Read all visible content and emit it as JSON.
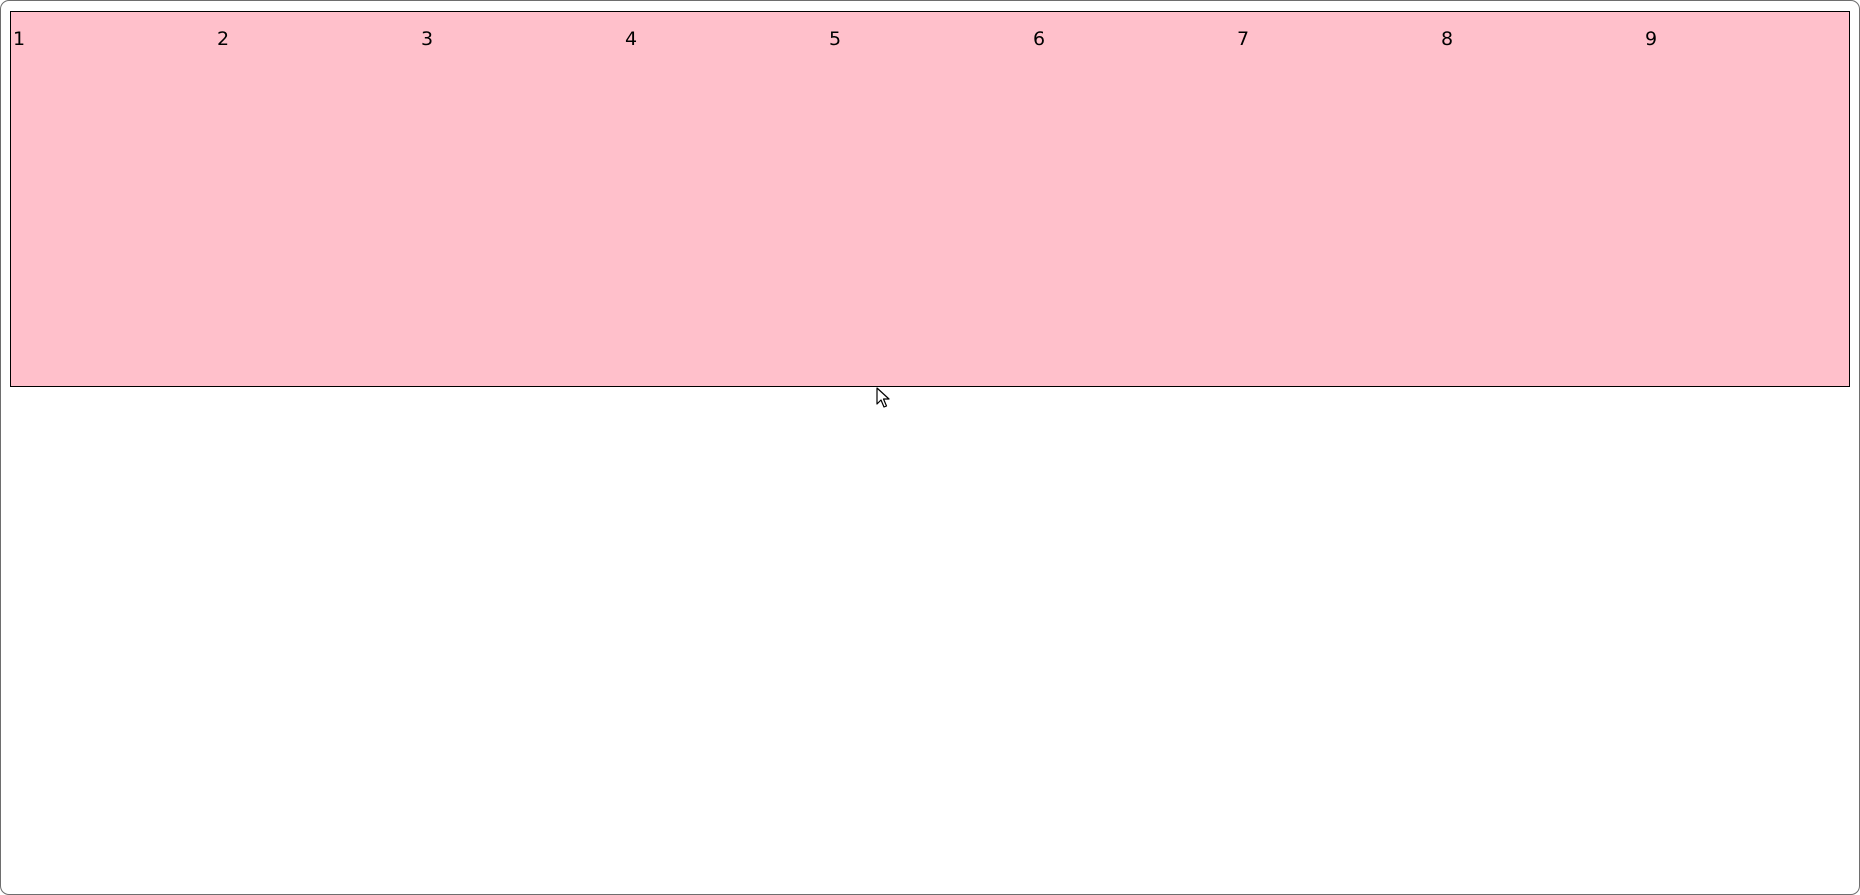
{
  "columns": {
    "labels": [
      "1",
      "2",
      "3",
      "4",
      "5",
      "6",
      "7",
      "8",
      "9"
    ]
  },
  "colors": {
    "box_fill": "#ffc0cb",
    "box_border": "#000000",
    "page_background": "#ffffff"
  },
  "cursor": {
    "icon": "arrow-cursor-icon"
  }
}
